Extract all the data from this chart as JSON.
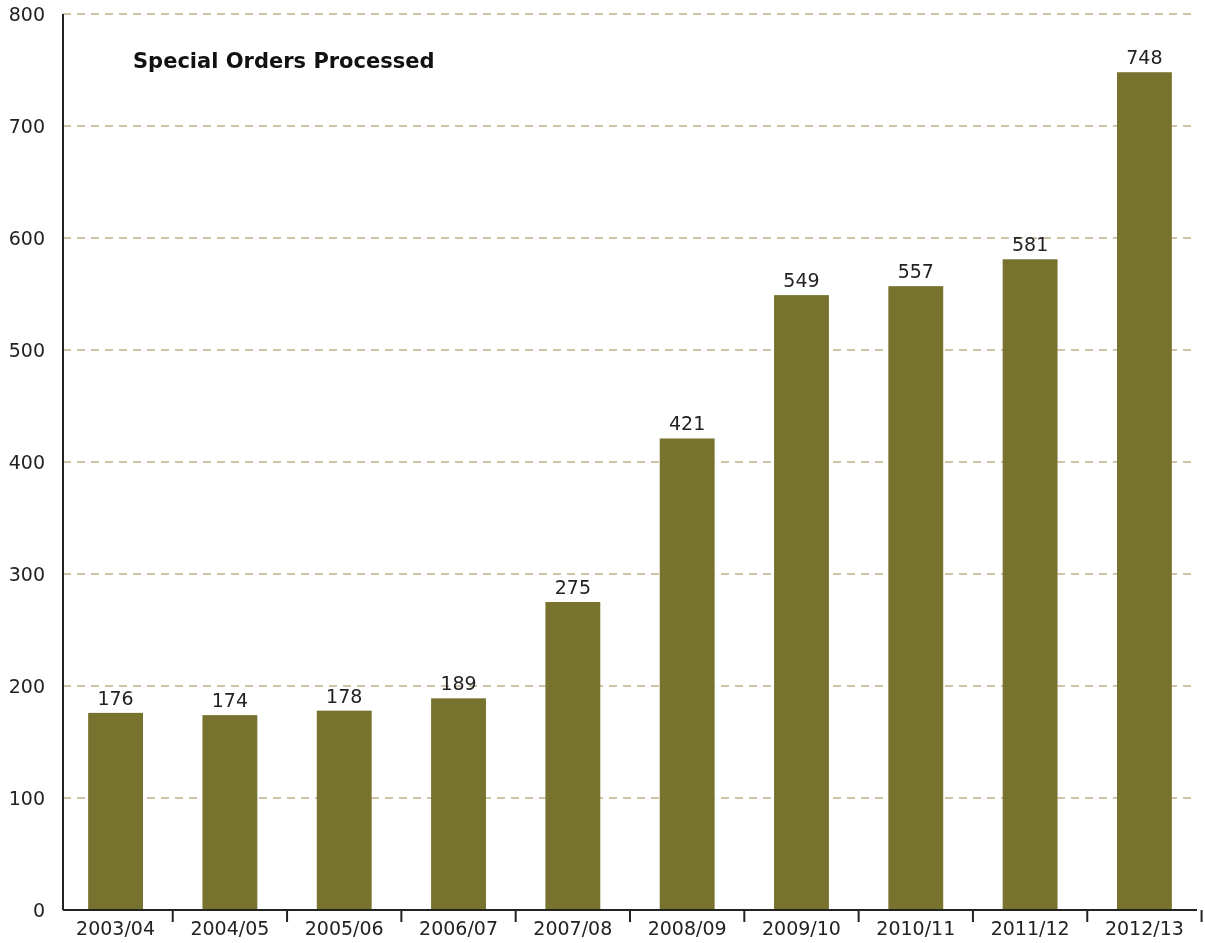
{
  "chart_data": {
    "type": "bar",
    "title": "Special Orders Processed",
    "categories": [
      "2003/04",
      "2004/05",
      "2005/06",
      "2006/07",
      "2007/08",
      "2008/09",
      "2009/10",
      "2010/11",
      "2011/12",
      "2012/13"
    ],
    "values": [
      176,
      174,
      178,
      189,
      275,
      421,
      549,
      557,
      581,
      748
    ],
    "color": "#77722e",
    "ylim": [
      0,
      800
    ],
    "yticks": [
      0,
      100,
      200,
      300,
      400,
      500,
      600,
      700,
      800
    ],
    "grid": "y",
    "data_labels": true
  }
}
